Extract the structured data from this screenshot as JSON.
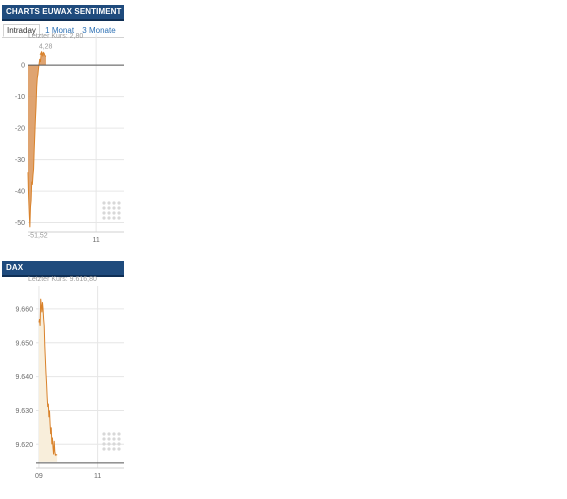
{
  "colors": {
    "header_bg": "#1f4b7d",
    "line": "#d9822b",
    "fill_sentiment": "#dc9a62",
    "fill_dax": "#f8eedb",
    "grid": "#e6e6e6"
  },
  "panel1": {
    "title": "CHARTS EUWAX SENTIMENT",
    "tabs": [
      "Intraday",
      "1 Monat",
      "3 Monate",
      "1"
    ],
    "last_price": "Letzter Kurs: 2,80"
  },
  "panel2": {
    "title": "DAX",
    "last_price": "Letzter Kurs: 9.616,80"
  },
  "chart_data": [
    {
      "type": "area",
      "title": "",
      "y_ticks": [
        "0",
        "-10",
        "-20",
        "-30",
        "-40",
        "-50"
      ],
      "y_tick_values": [
        0,
        -10,
        -20,
        -30,
        -40,
        -50
      ],
      "x_ticks": [
        "11"
      ],
      "x_tick_values": [
        11
      ],
      "ylim": [
        -53,
        8
      ],
      "xlim": [
        8.8,
        11.9
      ],
      "max_label": "4,28",
      "min_label": "-51,52",
      "baseline": 0,
      "grid": true,
      "series": [
        {
          "x": [
            8.8,
            8.82,
            8.84,
            8.86,
            8.88,
            8.9,
            8.92,
            8.94,
            8.96,
            8.98,
            9.0,
            9.02,
            9.04,
            9.06,
            9.08,
            9.1,
            9.12,
            9.14,
            9.16,
            9.18,
            9.2,
            9.22,
            9.24,
            9.26,
            9.28,
            9.3,
            9.32,
            9.34,
            9.36,
            9.38
          ],
          "values": [
            -34,
            -42,
            -47,
            -51.5,
            -45,
            -43,
            -37,
            -38,
            -35,
            -33,
            -27,
            -22,
            -17,
            -13,
            -7,
            -4,
            -3,
            -1,
            0.5,
            2,
            1,
            3,
            4.28,
            3.5,
            2.8,
            4,
            3.8,
            3.2,
            2.9,
            2.8
          ]
        }
      ]
    },
    {
      "type": "area",
      "title": "",
      "y_ticks": [
        "9.660",
        "9.650",
        "9.640",
        "9.630",
        "9.620"
      ],
      "y_tick_values": [
        9660,
        9650,
        9640,
        9630,
        9620
      ],
      "x_ticks": [
        "09",
        "11"
      ],
      "x_tick_values": [
        9,
        11
      ],
      "ylim": [
        9613,
        9665
      ],
      "xlim": [
        8.9,
        11.9
      ],
      "grid": true,
      "series": [
        {
          "x": [
            9.0,
            9.02,
            9.04,
            9.06,
            9.08,
            9.1,
            9.12,
            9.14,
            9.16,
            9.18,
            9.2,
            9.22,
            9.24,
            9.26,
            9.28,
            9.3,
            9.32,
            9.34,
            9.36,
            9.38,
            9.4,
            9.42,
            9.44,
            9.46,
            9.48,
            9.5,
            9.52,
            9.54,
            9.56,
            9.58,
            9.6,
            9.62
          ],
          "values": [
            9656,
            9657,
            9655,
            9663,
            9661,
            9659,
            9662,
            9660,
            9657,
            9655,
            9649,
            9645,
            9641,
            9638,
            9634,
            9631,
            9632,
            9628,
            9630,
            9626,
            9623,
            9625,
            9620,
            9622,
            9619,
            9617,
            9621,
            9618,
            9616.8,
            9617,
            9616.9,
            9616.8
          ]
        }
      ]
    }
  ]
}
